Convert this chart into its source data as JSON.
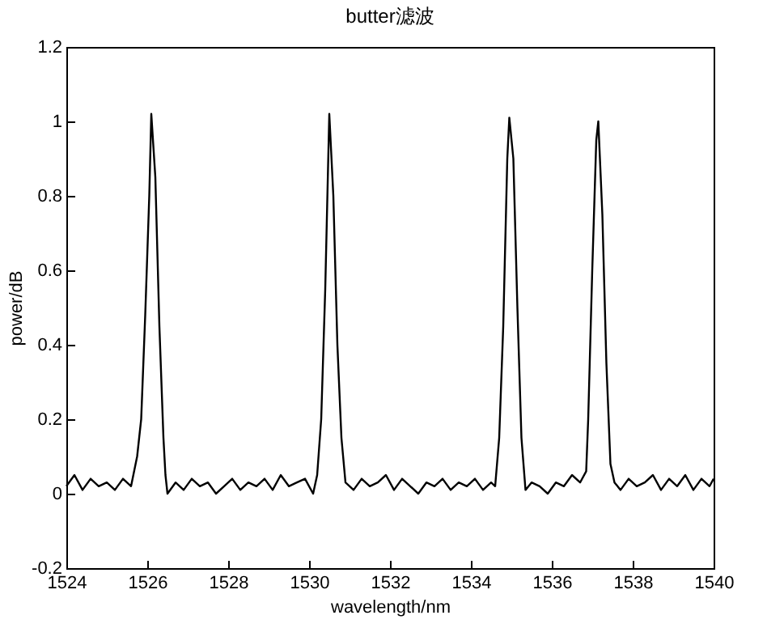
{
  "chart_data": {
    "type": "line",
    "title": "butter滤波",
    "xlabel": "wavelength/nm",
    "ylabel": "power/dB",
    "xlim": [
      1524,
      1540
    ],
    "xticks": [
      1524,
      1526,
      1528,
      1530,
      1532,
      1534,
      1536,
      1538,
      1540
    ],
    "ylim": [
      -0.2,
      1.2
    ],
    "yticks": [
      -0.2,
      0,
      0.2,
      0.4,
      0.6,
      0.8,
      1,
      1.2
    ],
    "grid": false,
    "marker": "none",
    "line_style": "solid",
    "x": [
      1524,
      1524.2,
      1524.4,
      1524.6,
      1524.8,
      1525,
      1525.2,
      1525.4,
      1525.6,
      1525.75,
      1525.85,
      1525.95,
      1526.05,
      1526.1,
      1526.2,
      1526.3,
      1526.4,
      1526.45,
      1526.5,
      1526.7,
      1526.9,
      1527.1,
      1527.3,
      1527.5,
      1527.7,
      1527.9,
      1528.1,
      1528.3,
      1528.5,
      1528.7,
      1528.9,
      1529.1,
      1529.3,
      1529.5,
      1529.7,
      1529.9,
      1530.1,
      1530.2,
      1530.3,
      1530.4,
      1530.5,
      1530.6,
      1530.7,
      1530.8,
      1530.9,
      1531.1,
      1531.3,
      1531.5,
      1531.7,
      1531.9,
      1532.1,
      1532.3,
      1532.5,
      1532.7,
      1532.9,
      1533.1,
      1533.3,
      1533.5,
      1533.7,
      1533.9,
      1534.1,
      1534.3,
      1534.5,
      1534.6,
      1534.7,
      1534.8,
      1534.9,
      1534.95,
      1535.05,
      1535.15,
      1535.25,
      1535.35,
      1535.5,
      1535.7,
      1535.9,
      1536.1,
      1536.3,
      1536.5,
      1536.7,
      1536.85,
      1536.9,
      1537,
      1537.1,
      1537.15,
      1537.25,
      1537.35,
      1537.45,
      1537.55,
      1537.7,
      1537.9,
      1538.1,
      1538.3,
      1538.5,
      1538.7,
      1538.9,
      1539.1,
      1539.3,
      1539.5,
      1539.7,
      1539.9,
      1540
    ],
    "values": [
      0.02,
      0.05,
      0.01,
      0.04,
      0.02,
      0.03,
      0.01,
      0.04,
      0.02,
      0.1,
      0.2,
      0.48,
      0.8,
      1.02,
      0.85,
      0.45,
      0.15,
      0.05,
      0.0,
      0.03,
      0.01,
      0.04,
      0.02,
      0.03,
      0.0,
      0.02,
      0.04,
      0.01,
      0.03,
      0.02,
      0.04,
      0.01,
      0.05,
      0.02,
      0.03,
      0.04,
      0.0,
      0.05,
      0.2,
      0.55,
      1.02,
      0.8,
      0.4,
      0.15,
      0.03,
      0.01,
      0.04,
      0.02,
      0.03,
      0.05,
      0.01,
      0.04,
      0.02,
      0.0,
      0.03,
      0.02,
      0.04,
      0.01,
      0.03,
      0.02,
      0.04,
      0.01,
      0.03,
      0.02,
      0.15,
      0.45,
      0.9,
      1.01,
      0.9,
      0.5,
      0.15,
      0.01,
      0.03,
      0.02,
      0.0,
      0.03,
      0.02,
      0.05,
      0.03,
      0.06,
      0.2,
      0.6,
      0.95,
      1.0,
      0.75,
      0.35,
      0.08,
      0.03,
      0.01,
      0.04,
      0.02,
      0.03,
      0.05,
      0.01,
      0.04,
      0.02,
      0.05,
      0.01,
      0.04,
      0.02,
      0.04
    ],
    "color": "#000000"
  }
}
